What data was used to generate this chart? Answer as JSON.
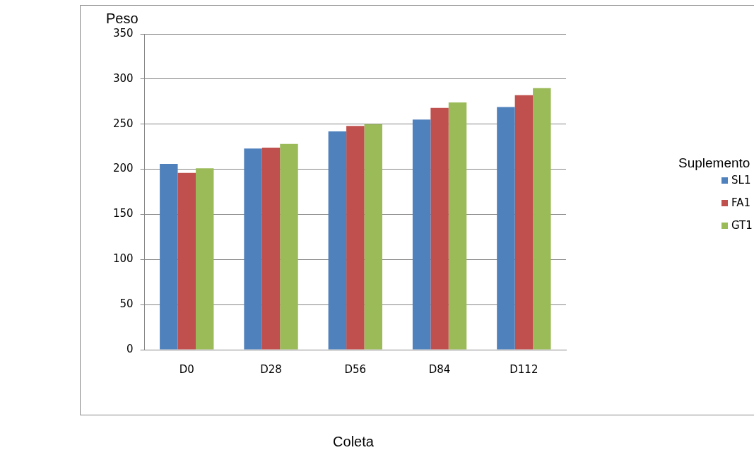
{
  "chart_data": {
    "type": "bar",
    "xlabel": "Coleta",
    "ylabel": "Peso",
    "legend_title": "Suplemento",
    "categories": [
      "D0",
      "D28",
      "D56",
      "D84",
      "D112"
    ],
    "series": [
      {
        "name": "SL1",
        "color": "#4f81bd",
        "values": [
          206,
          223,
          242,
          255,
          269
        ]
      },
      {
        "name": "FA1",
        "color": "#c0504d",
        "values": [
          196,
          224,
          248,
          268,
          282
        ]
      },
      {
        "name": "GT1",
        "color": "#9bbb59",
        "values": [
          201,
          228,
          250,
          274,
          290
        ]
      }
    ],
    "ylim": [
      0,
      350
    ],
    "yticks": [
      0,
      50,
      100,
      150,
      200,
      250,
      300,
      350
    ],
    "grid": "y",
    "legend": "right"
  }
}
